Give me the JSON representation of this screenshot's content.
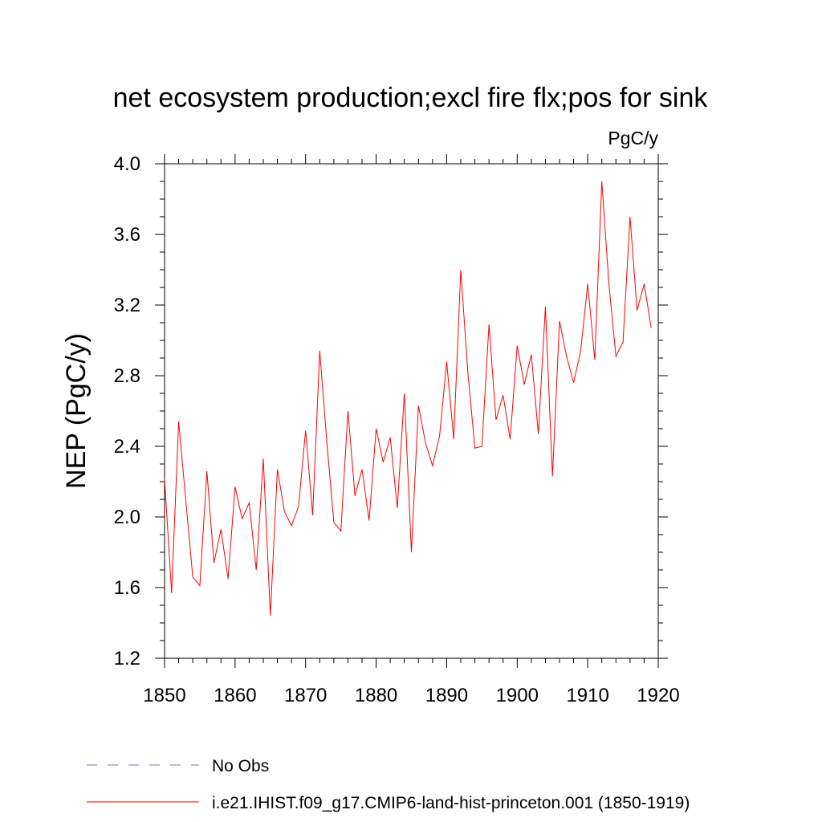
{
  "chart_data": {
    "type": "line",
    "title": "net ecosystem production;excl fire flx;pos for sink",
    "units": "PgC/y",
    "ylabel": "NEP  (PgC/y)",
    "xlabel": "",
    "xlim": [
      1850,
      1920
    ],
    "ylim": [
      1.2,
      4.0
    ],
    "x_ticks": [
      1850,
      1860,
      1870,
      1880,
      1890,
      1900,
      1910,
      1920
    ],
    "y_ticks": [
      1.2,
      1.6,
      2.0,
      2.4,
      2.8,
      3.2,
      3.6,
      4.0
    ],
    "grid": false,
    "series": [
      {
        "name": "i.e21.IHIST.f09_g17.CMIP6-land-hist-princeton.001 (1850-1919)",
        "color": "#ff0000",
        "x": [
          1850,
          1851,
          1852,
          1853,
          1854,
          1855,
          1856,
          1857,
          1858,
          1859,
          1860,
          1861,
          1862,
          1863,
          1864,
          1865,
          1866,
          1867,
          1868,
          1869,
          1870,
          1871,
          1872,
          1873,
          1874,
          1875,
          1876,
          1877,
          1878,
          1879,
          1880,
          1881,
          1882,
          1883,
          1884,
          1885,
          1886,
          1887,
          1888,
          1889,
          1890,
          1891,
          1892,
          1893,
          1894,
          1895,
          1896,
          1897,
          1898,
          1899,
          1900,
          1901,
          1902,
          1903,
          1904,
          1905,
          1906,
          1907,
          1908,
          1909,
          1910,
          1911,
          1912,
          1913,
          1914,
          1915,
          1916,
          1917,
          1918,
          1919
        ],
        "values": [
          2.22,
          1.57,
          2.54,
          2.1,
          1.66,
          1.61,
          2.26,
          1.74,
          1.93,
          1.65,
          2.17,
          1.99,
          2.08,
          1.7,
          2.33,
          1.44,
          2.27,
          2.03,
          1.95,
          2.06,
          2.49,
          2.01,
          2.94,
          2.43,
          1.97,
          1.92,
          2.6,
          2.12,
          2.27,
          1.98,
          2.5,
          2.31,
          2.45,
          2.05,
          2.7,
          1.8,
          2.63,
          2.42,
          2.29,
          2.46,
          2.88,
          2.44,
          3.4,
          2.82,
          2.39,
          2.4,
          3.09,
          2.55,
          2.69,
          2.44,
          2.97,
          2.75,
          2.92,
          2.47,
          3.19,
          2.23,
          3.11,
          2.91,
          2.76,
          2.94,
          3.32,
          2.89,
          3.9,
          3.32,
          2.91,
          2.99,
          3.7,
          3.17,
          3.32,
          3.07
        ]
      },
      {
        "name": "No Obs",
        "color": "#7b6fc2",
        "dashed": true,
        "x": [],
        "values": []
      }
    ],
    "legend": {
      "placement": "bottom"
    }
  }
}
